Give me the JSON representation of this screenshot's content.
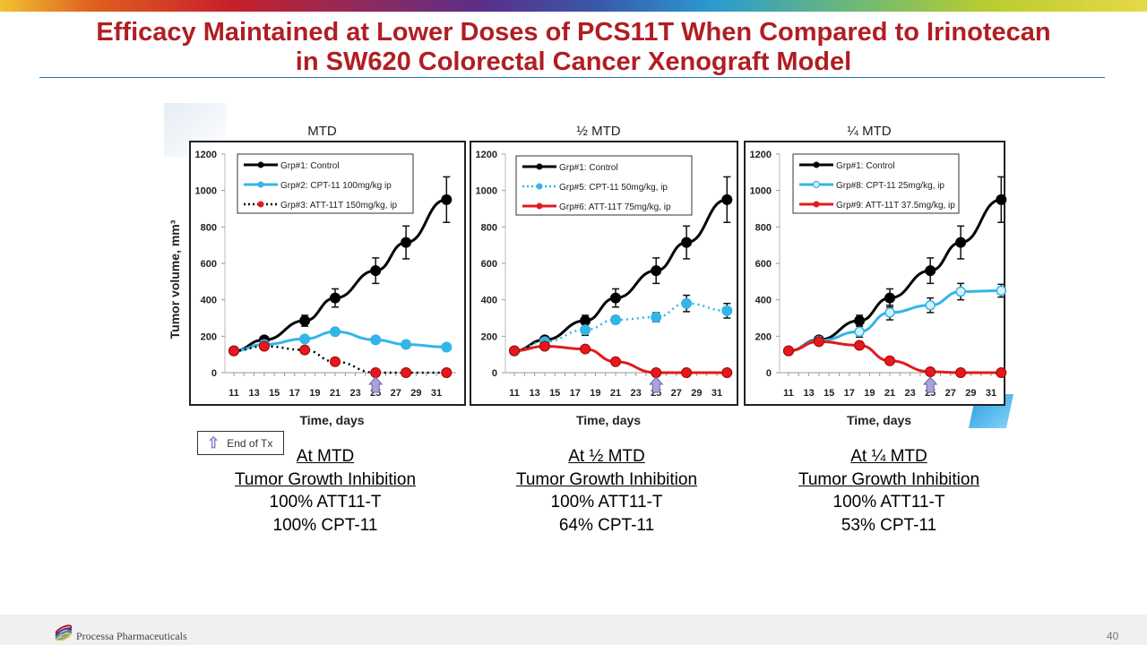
{
  "slide": {
    "title_line1": "Efficacy Maintained at Lower Doses of PCS11T When Compared to Irinotecan",
    "title_line2": "in SW620 Colorectal Cancer Xenograft Model",
    "brand_color": "#b01e23",
    "footer_company": "Processa Pharmaceuticals",
    "page_number": "40",
    "end_of_tx_label": "End of Tx"
  },
  "summaries": [
    {
      "heading": "At MTD",
      "subheading": "Tumor Growth Inhibition",
      "line1": "100% ATT11-T",
      "line2": "100% CPT-11"
    },
    {
      "heading": "At ½ MTD",
      "subheading": "Tumor Growth Inhibition",
      "line1": "100% ATT11-T",
      "line2": "64% CPT-11"
    },
    {
      "heading": "At ¼ MTD",
      "subheading": "Tumor Growth Inhibition",
      "line1": "100% ATT11-T",
      "line2": "53% CPT-11"
    }
  ],
  "chart_data": [
    {
      "type": "line",
      "title": "MTD",
      "xlabel": "Time, days",
      "ylabel": "Tumor volume, mm³",
      "xlim": [
        11,
        32
      ],
      "ylim": [
        0,
        1200
      ],
      "xticks": [
        11,
        13,
        15,
        17,
        19,
        21,
        23,
        25,
        27,
        29,
        31
      ],
      "yticks": [
        0,
        200,
        400,
        600,
        800,
        1000,
        1200
      ],
      "legend": "top-left",
      "end_of_tx_day": 25,
      "x": [
        11,
        14,
        18,
        21,
        25,
        28,
        32
      ],
      "series": [
        {
          "name": "Grp#1: Control",
          "color": "#000000",
          "style": "solid",
          "marker": "filled",
          "values": [
            120,
            180,
            285,
            410,
            560,
            715,
            950
          ],
          "errors": [
            0,
            10,
            30,
            50,
            70,
            90,
            125
          ]
        },
        {
          "name": "Grp#2: CPT-11 100mg/kg ip",
          "color": "#33b5e8",
          "style": "solid",
          "marker": "filled",
          "values": [
            120,
            155,
            185,
            225,
            180,
            155,
            140
          ],
          "errors": [
            0,
            0,
            0,
            0,
            0,
            0,
            0
          ]
        },
        {
          "name": "Grp#3: ATT-11T 150mg/kg, ip",
          "color": "#e31a1c",
          "line_color": "#000000",
          "style": "dotted",
          "marker": "filled",
          "values": [
            120,
            145,
            125,
            60,
            0,
            0,
            0
          ],
          "errors": [
            0,
            0,
            0,
            0,
            0,
            0,
            0
          ]
        }
      ]
    },
    {
      "type": "line",
      "title": "½ MTD",
      "xlabel": "Time, days",
      "ylabel": "",
      "xlim": [
        11,
        32
      ],
      "ylim": [
        0,
        1200
      ],
      "xticks": [
        11,
        13,
        15,
        17,
        19,
        21,
        23,
        25,
        27,
        29,
        31
      ],
      "yticks": [
        0,
        200,
        400,
        600,
        800,
        1000,
        1200
      ],
      "legend": "top-left",
      "end_of_tx_day": 25,
      "x": [
        11,
        14,
        18,
        21,
        25,
        28,
        32
      ],
      "series": [
        {
          "name": "Grp#1: Control",
          "color": "#000000",
          "style": "solid",
          "marker": "filled",
          "values": [
            120,
            180,
            285,
            410,
            560,
            715,
            950
          ],
          "errors": [
            0,
            10,
            30,
            50,
            70,
            90,
            125
          ]
        },
        {
          "name": "Grp#5: CPT-11 50mg/kg, ip",
          "color": "#33b5e8",
          "style": "dotted",
          "marker": "filled",
          "values": [
            120,
            170,
            235,
            290,
            305,
            380,
            340
          ],
          "errors": [
            0,
            10,
            30,
            20,
            25,
            45,
            40
          ]
        },
        {
          "name": "Grp#6: ATT-11T 75mg/kg, ip",
          "color": "#e31a1c",
          "style": "solid",
          "marker": "filled",
          "values": [
            120,
            145,
            130,
            60,
            0,
            0,
            0
          ],
          "errors": [
            0,
            0,
            0,
            0,
            0,
            0,
            0
          ]
        }
      ]
    },
    {
      "type": "line",
      "title": "¼ MTD",
      "xlabel": "Time, days",
      "ylabel": "",
      "xlim": [
        11,
        32
      ],
      "ylim": [
        0,
        1200
      ],
      "xticks": [
        11,
        13,
        15,
        17,
        19,
        21,
        23,
        25,
        27,
        29,
        31
      ],
      "yticks": [
        0,
        200,
        400,
        600,
        800,
        1000,
        1200
      ],
      "legend": "top-left",
      "end_of_tx_day": 25,
      "x": [
        11,
        14,
        18,
        21,
        25,
        28,
        32
      ],
      "series": [
        {
          "name": "Grp#1: Control",
          "color": "#000000",
          "style": "solid",
          "marker": "filled",
          "values": [
            120,
            180,
            285,
            410,
            560,
            715,
            950
          ],
          "errors": [
            0,
            10,
            30,
            50,
            70,
            90,
            125
          ]
        },
        {
          "name": "Grp#8: CPT-11 25mg/kg, ip",
          "color": "#33b5e8",
          "style": "solid",
          "marker": "open",
          "values": [
            120,
            175,
            225,
            330,
            370,
            445,
            450
          ],
          "errors": [
            0,
            10,
            30,
            40,
            40,
            45,
            35
          ]
        },
        {
          "name": "Grp#9: ATT-11T 37.5mg/kg, ip",
          "color": "#e31a1c",
          "style": "solid",
          "marker": "filled",
          "values": [
            120,
            170,
            150,
            65,
            5,
            0,
            0
          ],
          "errors": [
            0,
            0,
            0,
            0,
            0,
            0,
            0
          ]
        }
      ]
    }
  ]
}
